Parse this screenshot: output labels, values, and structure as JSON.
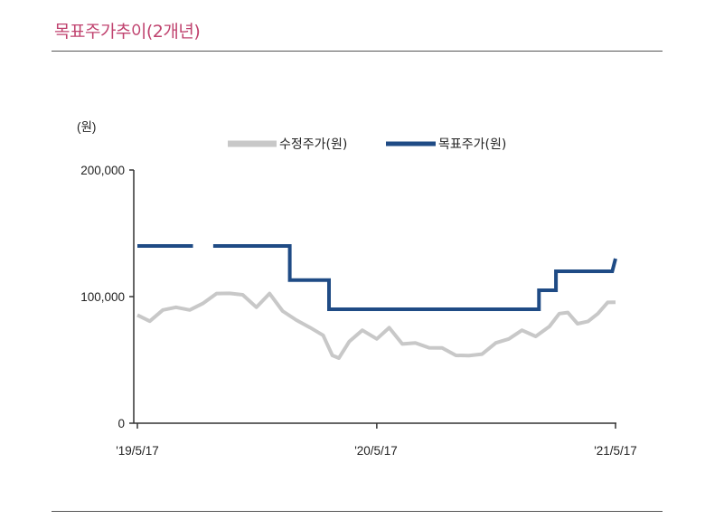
{
  "title": "목표주가추이(2개년)",
  "chart_data": {
    "type": "line",
    "title": "목표주가추이(2개년)",
    "ylabel": "(원)",
    "ylim": [
      0,
      200000
    ],
    "y_ticks": [
      "200,000",
      "100,000",
      "0"
    ],
    "x_ticks": [
      "'19/5/17",
      "'20/5/17",
      "'21/5/17"
    ],
    "legend_placement": "top-center",
    "series": [
      {
        "name": "수정주가(원)",
        "color": "#c8c8c8",
        "points": [
          [
            "2019-05-17",
            84000
          ],
          [
            "2019-06-05",
            82000
          ],
          [
            "2019-06-25",
            88000
          ],
          [
            "2019-07-15",
            93000
          ],
          [
            "2019-08-05",
            88000
          ],
          [
            "2019-08-25",
            96000
          ],
          [
            "2019-09-15",
            101000
          ],
          [
            "2019-10-05",
            104000
          ],
          [
            "2019-10-25",
            100000
          ],
          [
            "2019-11-15",
            93000
          ],
          [
            "2019-12-05",
            101000
          ],
          [
            "2019-12-25",
            90000
          ],
          [
            "2020-01-15",
            80000
          ],
          [
            "2020-02-05",
            77000
          ],
          [
            "2020-02-25",
            68000
          ],
          [
            "2020-03-10",
            55000
          ],
          [
            "2020-03-20",
            50000
          ],
          [
            "2020-04-05",
            66000
          ],
          [
            "2020-04-25",
            72000
          ],
          [
            "2020-05-17",
            68000
          ],
          [
            "2020-06-05",
            74000
          ],
          [
            "2020-06-25",
            64000
          ],
          [
            "2020-07-15",
            62000
          ],
          [
            "2020-08-05",
            61000
          ],
          [
            "2020-08-25",
            58000
          ],
          [
            "2020-09-15",
            55000
          ],
          [
            "2020-10-05",
            52000
          ],
          [
            "2020-10-25",
            56000
          ],
          [
            "2020-11-15",
            62000
          ],
          [
            "2020-12-05",
            68000
          ],
          [
            "2020-12-25",
            72000
          ],
          [
            "2021-01-15",
            70000
          ],
          [
            "2021-02-05",
            75000
          ],
          [
            "2021-02-20",
            88000
          ],
          [
            "2021-03-05",
            86000
          ],
          [
            "2021-03-20",
            80000
          ],
          [
            "2021-04-05",
            79000
          ],
          [
            "2021-04-20",
            88000
          ],
          [
            "2021-05-05",
            94000
          ],
          [
            "2021-05-17",
            97000
          ]
        ]
      },
      {
        "name": "목표주가(원)",
        "color": "#1f4b85",
        "segments": [
          [
            [
              "2019-05-17",
              140000
            ],
            [
              "2019-08-10",
              140000
            ]
          ],
          [
            [
              "2019-09-10",
              140000
            ],
            [
              "2020-01-05",
              140000
            ],
            [
              "2020-01-05",
              113000
            ],
            [
              "2020-03-05",
              113000
            ],
            [
              "2020-03-05",
              90000
            ],
            [
              "2021-01-20",
              90000
            ],
            [
              "2021-01-20",
              105000
            ],
            [
              "2021-02-15",
              105000
            ],
            [
              "2021-02-15",
              120000
            ],
            [
              "2021-05-12",
              120000
            ],
            [
              "2021-05-17",
              130000
            ]
          ]
        ]
      }
    ]
  }
}
